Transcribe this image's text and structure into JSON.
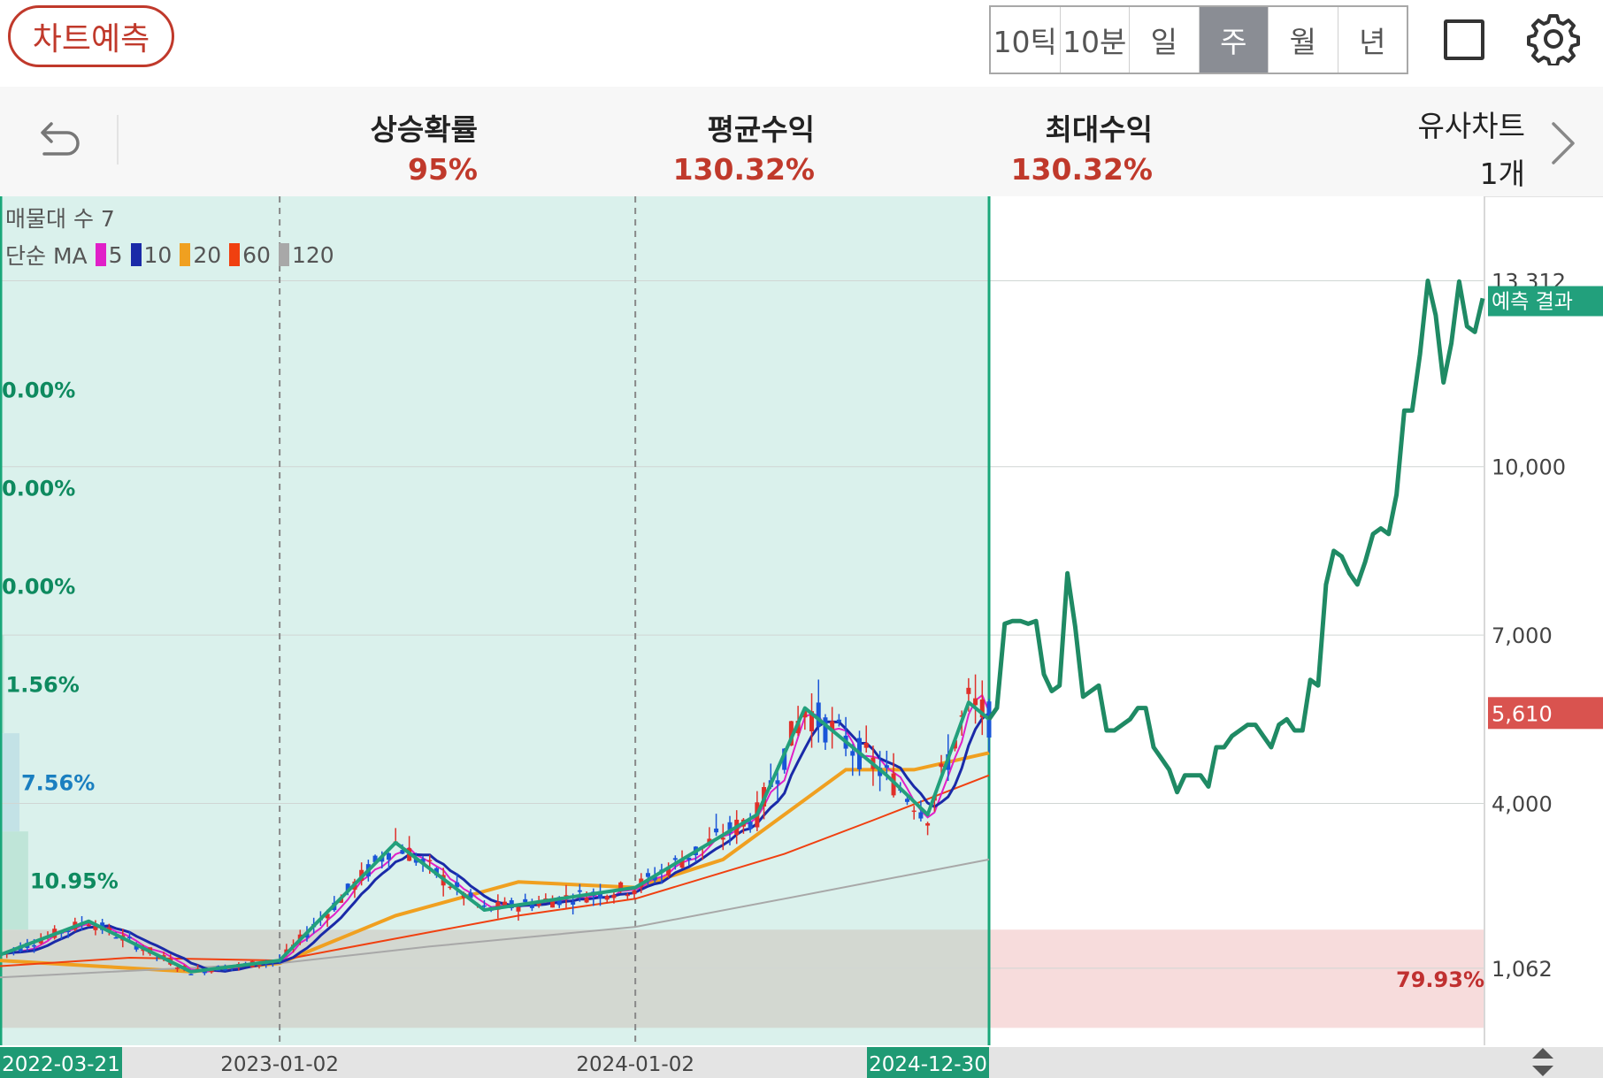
{
  "toolbar": {
    "predict_label": "차트예측",
    "periods": [
      {
        "label": "10틱",
        "active": false
      },
      {
        "label": "10분",
        "active": false
      },
      {
        "label": "일",
        "active": false
      },
      {
        "label": "주",
        "active": true
      },
      {
        "label": "월",
        "active": false
      },
      {
        "label": "년",
        "active": false
      }
    ],
    "icons": {
      "square": "square-icon",
      "settings": "gear-icon"
    }
  },
  "stats": {
    "back_icon": "undo-arrow-icon",
    "rise_probability": {
      "label": "상승확률",
      "value": "95%"
    },
    "average_return": {
      "label": "평균수익",
      "value": "130.32%"
    },
    "max_return": {
      "label": "최대수익",
      "value": "130.32%"
    },
    "similar_charts": {
      "label": "유사차트",
      "count": "1개"
    },
    "next_icon": "chevron-right-icon"
  },
  "legend": {
    "volume_profile_label": "매물대 수 7",
    "ma_label": "단순 MA",
    "ma_periods": [
      {
        "period": "5",
        "color": "#e020c8"
      },
      {
        "period": "10",
        "color": "#1a2aa8"
      },
      {
        "period": "20",
        "color": "#f0a020"
      },
      {
        "period": "60",
        "color": "#f04010"
      },
      {
        "period": "120",
        "color": "#a8a8a8"
      }
    ]
  },
  "chart_data": {
    "type": "candlestick",
    "y_axis_labels": [
      "13,312",
      "10,000",
      "7,000",
      "4,000",
      "1,062"
    ],
    "ylim": [
      200,
      14500
    ],
    "current_price_label": "5,610",
    "prediction_label": "예측 결과",
    "x_axis_labels": [
      "2022-03-21",
      "2023-01-02",
      "2024-01-02",
      "2024-12-30"
    ],
    "x_range": [
      "2022-03-21",
      "2024-12-30"
    ],
    "volume_profile": [
      {
        "low": 10500,
        "high": 12250,
        "percent": "0.00%",
        "color": "#0e8a5f"
      },
      {
        "low": 8750,
        "high": 10500,
        "percent": "0.00%",
        "color": "#0e8a5f"
      },
      {
        "low": 7000,
        "high": 8750,
        "percent": "0.00%",
        "color": "#0e8a5f"
      },
      {
        "low": 5250,
        "high": 7000,
        "percent": "1.56%",
        "color": "#0e8a5f"
      },
      {
        "low": 3500,
        "high": 5250,
        "percent": "7.56%",
        "color": "#1a7fc0"
      },
      {
        "low": 1750,
        "high": 3500,
        "percent": "10.95%",
        "color": "#0e8a5f"
      },
      {
        "low": 0,
        "high": 1750,
        "percent": "79.93%",
        "color": "#c03030"
      }
    ],
    "price_zigzag": [
      {
        "x": "2022-03-21",
        "y": 1300
      },
      {
        "x": "2022-06-20",
        "y": 1900
      },
      {
        "x": "2022-10-03",
        "y": 1000
      },
      {
        "x": "2023-01-02",
        "y": 1200
      },
      {
        "x": "2023-05-01",
        "y": 3300
      },
      {
        "x": "2023-07-31",
        "y": 2100
      },
      {
        "x": "2024-01-02",
        "y": 2500
      },
      {
        "x": "2024-05-06",
        "y": 3800
      },
      {
        "x": "2024-06-24",
        "y": 5700
      },
      {
        "x": "2024-09-16",
        "y": 4500
      },
      {
        "x": "2024-10-28",
        "y": 3800
      },
      {
        "x": "2024-12-09",
        "y": 5800
      },
      {
        "x": "2024-12-30",
        "y": 5500
      }
    ],
    "prediction_path": [
      5500,
      5700,
      7200,
      7250,
      7250,
      7200,
      7250,
      6300,
      6000,
      6100,
      8100,
      7150,
      5900,
      6000,
      6100,
      5300,
      5300,
      5400,
      5500,
      5700,
      5700,
      5000,
      4800,
      4600,
      4200,
      4500,
      4500,
      4500,
      4300,
      5000,
      5000,
      5200,
      5300,
      5400,
      5400,
      5200,
      5000,
      5400,
      5500,
      5300,
      5300,
      6200,
      6100,
      7900,
      8500,
      8400,
      8100,
      7900,
      8300,
      8800,
      8900,
      8800,
      9500,
      11000,
      11000,
      12000,
      13312,
      12700,
      11500,
      12200,
      13300,
      12500,
      12400,
      13000
    ],
    "ma_lines": [
      {
        "period": "20",
        "points": [
          {
            "x": "2022-03-21",
            "y": 1200
          },
          {
            "x": "2022-10-03",
            "y": 1000
          },
          {
            "x": "2023-01-02",
            "y": 1150
          },
          {
            "x": "2023-05-01",
            "y": 2000
          },
          {
            "x": "2023-09-04",
            "y": 2600
          },
          {
            "x": "2024-01-02",
            "y": 2500
          },
          {
            "x": "2024-04-01",
            "y": 3000
          },
          {
            "x": "2024-08-05",
            "y": 4600
          },
          {
            "x": "2024-10-14",
            "y": 4600
          },
          {
            "x": "2024-12-30",
            "y": 4900
          }
        ]
      },
      {
        "period": "60",
        "points": [
          {
            "x": "2022-03-21",
            "y": 1100
          },
          {
            "x": "2022-08-01",
            "y": 1250
          },
          {
            "x": "2023-01-02",
            "y": 1200
          },
          {
            "x": "2023-04-03",
            "y": 1500
          },
          {
            "x": "2023-09-04",
            "y": 2000
          },
          {
            "x": "2024-01-02",
            "y": 2300
          },
          {
            "x": "2024-06-03",
            "y": 3100
          },
          {
            "x": "2024-09-02",
            "y": 3700
          },
          {
            "x": "2024-12-30",
            "y": 4500
          }
        ]
      },
      {
        "period": "120",
        "points": [
          {
            "x": "2022-03-21",
            "y": 900
          },
          {
            "x": "2023-01-02",
            "y": 1150
          },
          {
            "x": "2023-06-05",
            "y": 1450
          },
          {
            "x": "2024-01-02",
            "y": 1800
          },
          {
            "x": "2024-06-03",
            "y": 2300
          },
          {
            "x": "2024-12-30",
            "y": 3000
          }
        ]
      }
    ]
  }
}
